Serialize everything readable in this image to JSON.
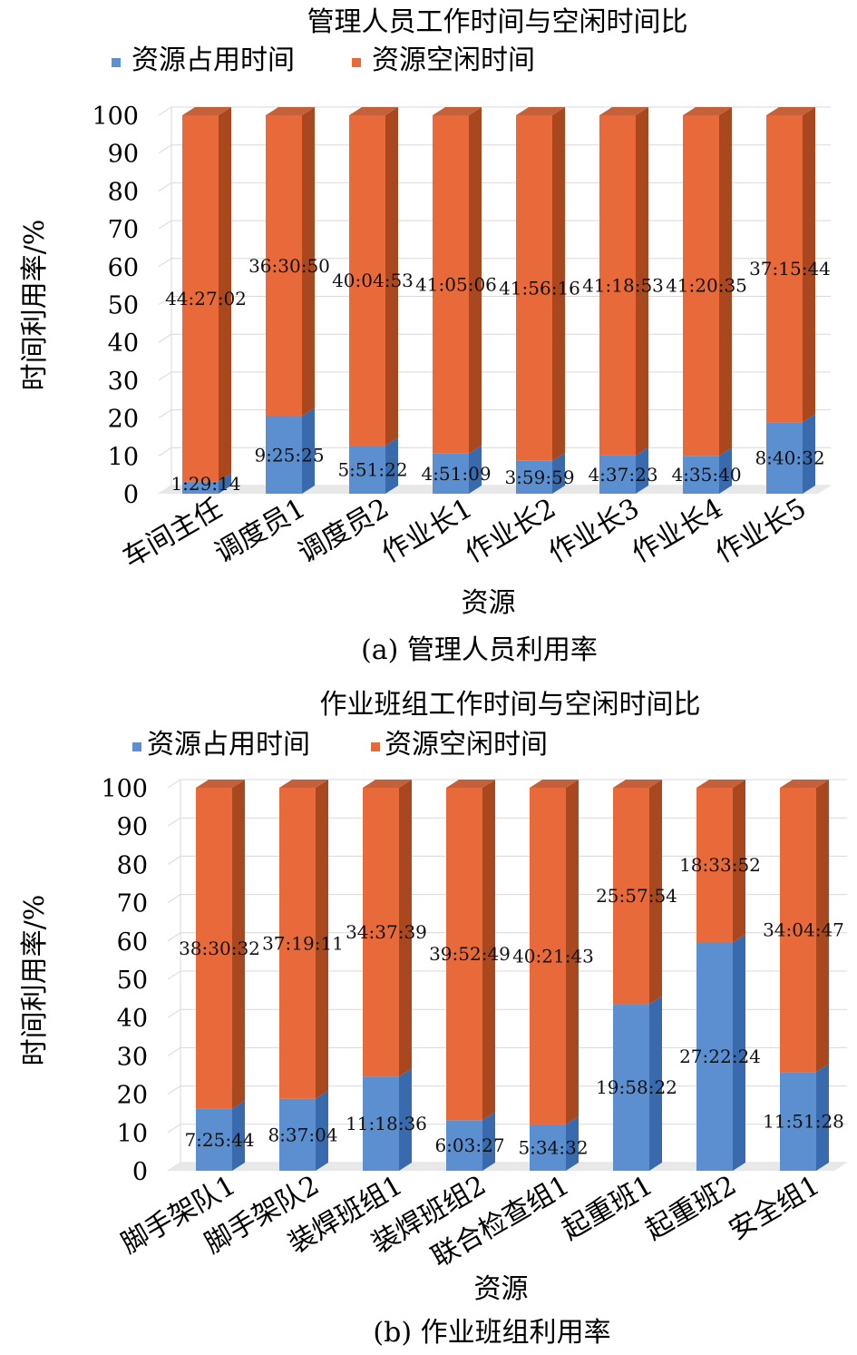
{
  "colors": {
    "occupied_front": "#5B8FD0",
    "occupied_side": "#3A6AAE",
    "occupied_top": "#7AA6DE",
    "idle_front": "#E86A3A",
    "idle_side": "#A9481F",
    "idle_top": "#C4603A",
    "grid": "#D9D9D9",
    "floor": "#E8E8E8"
  },
  "chart_data": [
    {
      "type": "bar",
      "stacked": true,
      "title": "管理人员工作时间与空闲时间比",
      "caption": "(a) 管理人员利用率",
      "xlabel": "资源",
      "ylabel": "时间利用率/%",
      "ylim": [
        0,
        100
      ],
      "yticks": [
        0,
        10,
        20,
        30,
        40,
        50,
        60,
        70,
        80,
        90,
        100
      ],
      "grid": true,
      "legend": "top",
      "categories": [
        "车间主任",
        "调度员1",
        "调度员2",
        "作业长1",
        "作业长2",
        "作业长3",
        "作业长4",
        "作业长5"
      ],
      "series": [
        {
          "name": "资源占用时间",
          "values": [
            3.2,
            20.5,
            12.7,
            10.6,
            8.7,
            10.1,
            10.0,
            18.9
          ],
          "labels": [
            "1:29:14",
            "9:25:25",
            "5:51:22",
            "4:51:09",
            "3:59:59",
            "4:37:23",
            "4:35:40",
            "8:40:32"
          ]
        },
        {
          "name": "资源空闲时间",
          "values": [
            96.8,
            79.5,
            87.3,
            89.4,
            91.3,
            89.9,
            90.0,
            81.1
          ],
          "labels": [
            "44:27:02",
            "36:30:50",
            "40:04:53",
            "41:05:06",
            "41:56:16",
            "41:18:53",
            "41:20:35",
            "37:15:44"
          ]
        }
      ]
    },
    {
      "type": "bar",
      "stacked": true,
      "title": "作业班组工作时间与空闲时间比",
      "caption": "(b) 作业班组利用率",
      "xlabel": "资源",
      "ylabel": "时间利用率/%",
      "ylim": [
        0,
        100
      ],
      "yticks": [
        0,
        10,
        20,
        30,
        40,
        50,
        60,
        70,
        80,
        90,
        100
      ],
      "grid": true,
      "legend": "top",
      "categories": [
        "脚手架队1",
        "脚手架队2",
        "装焊班组1",
        "装焊班组2",
        "联合检查组1",
        "起重班1",
        "起重班2",
        "安全组1"
      ],
      "series": [
        {
          "name": "资源占用时间",
          "values": [
            16.2,
            18.8,
            24.6,
            13.2,
            12.1,
            43.5,
            59.6,
            25.8
          ],
          "labels": [
            "7:25:44",
            "8:37:04",
            "11:18:36",
            "6:03:27",
            "5:34:32",
            "19:58:22",
            "27:22:24",
            "11:51:28"
          ]
        },
        {
          "name": "资源空闲时间",
          "values": [
            83.8,
            81.2,
            75.4,
            86.8,
            87.9,
            56.5,
            40.4,
            74.2
          ],
          "labels": [
            "38:30:32",
            "37:19:11",
            "34:37:39",
            "39:52:49",
            "40:21:43",
            "25:57:54",
            "18:33:52",
            "34:04:47"
          ]
        }
      ]
    }
  ]
}
